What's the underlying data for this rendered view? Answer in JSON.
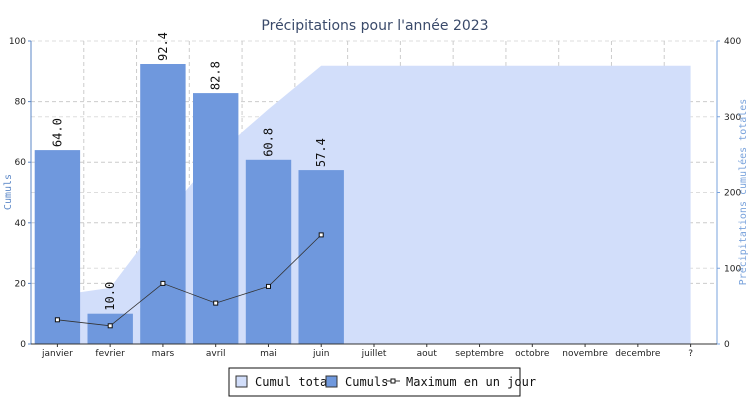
{
  "chart_data": {
    "type": "bar",
    "title": "Précipitations pour l'année 2023",
    "categories": [
      "janvier",
      "fevrier",
      "mars",
      "avril",
      "mai",
      "juin",
      "juillet",
      "aout",
      "septembre",
      "octobre",
      "novembre",
      "decembre",
      "?"
    ],
    "ylabel": "Cumuls",
    "y2label": "Précipitations cumulées totales",
    "ylim": [
      0,
      100
    ],
    "y2lim": [
      0,
      400
    ],
    "yticks": [
      0,
      20,
      40,
      60,
      80,
      100
    ],
    "y2ticks": [
      0,
      100,
      200,
      300,
      400
    ],
    "grid": true,
    "legend_position": "bottom-center",
    "series": [
      {
        "name": "Cumul total",
        "type": "area",
        "axis": "right",
        "color": "#d2defa",
        "values": [
          64.0,
          74.0,
          166.4,
          249.2,
          310.0,
          367.4,
          367.4,
          367.4,
          367.4,
          367.4,
          367.4,
          367.4,
          367.4
        ]
      },
      {
        "name": "Cumuls",
        "type": "bar",
        "axis": "left",
        "color": "#6f98dd",
        "values": [
          64.0,
          10.0,
          92.4,
          82.8,
          60.8,
          57.4,
          null,
          null,
          null,
          null,
          null,
          null,
          null
        ],
        "labels": [
          "64.0",
          "10.0",
          "92.4",
          "82.8",
          "60.8",
          "57.4"
        ]
      },
      {
        "name": "Maximum en un jour",
        "type": "line",
        "axis": "left",
        "color": "#333333",
        "values": [
          8.0,
          6.0,
          20.0,
          13.5,
          19.0,
          36.0,
          null,
          null,
          null,
          null,
          null,
          null,
          null
        ]
      }
    ]
  }
}
